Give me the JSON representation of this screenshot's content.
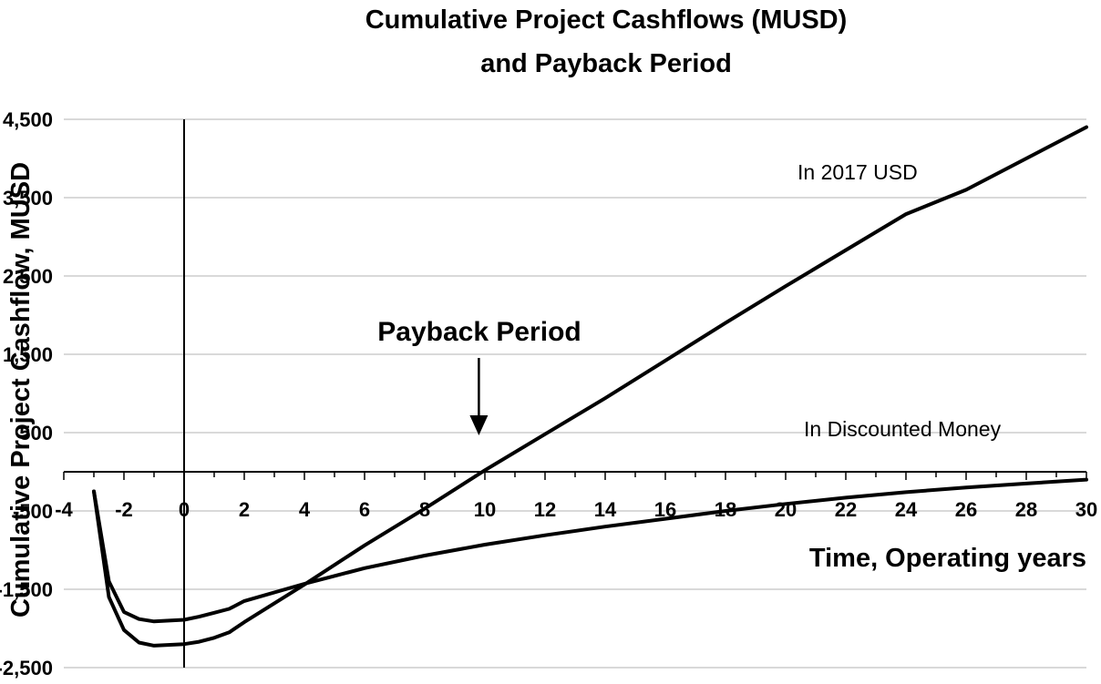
{
  "chart_data": {
    "type": "line",
    "title": "Cumulative Project Cashflows (MUSD)",
    "subtitle": "and Payback Period",
    "xlabel": "Time, Operating years",
    "ylabel": "Cumulative  Project Cashflow, MUSD",
    "xlim": [
      -4,
      30
    ],
    "ylim": [
      -2500,
      4500
    ],
    "x_ticks": [
      "-4",
      "-2",
      "0",
      "2",
      "4",
      "6",
      "8",
      "10",
      "12",
      "14",
      "16",
      "18",
      "20",
      "22",
      "24",
      "26",
      "28",
      "30"
    ],
    "y_ticks": [
      "4,500",
      "3,500",
      "2,500",
      "1,500",
      "500",
      "-500",
      "-1,500",
      "-2,500"
    ],
    "grid": "horizontal",
    "series": [
      {
        "name": "In 2017 USD",
        "x": [
          -3,
          -2.5,
          -2,
          -1.5,
          -1,
          0,
          0.5,
          1,
          1.5,
          2,
          4,
          6,
          8,
          10,
          12,
          14,
          16,
          18,
          20,
          22,
          24,
          26,
          28,
          30
        ],
        "y": [
          -250,
          -1600,
          -2020,
          -2180,
          -2220,
          -2200,
          -2170,
          -2120,
          -2050,
          -1920,
          -1440,
          -940,
          -470,
          20,
          480,
          940,
          1420,
          1900,
          2370,
          2830,
          3290,
          3600,
          4000,
          4400
        ]
      },
      {
        "name": "In Discounted Money",
        "x": [
          -3,
          -2.5,
          -2,
          -1.5,
          -1,
          0,
          0.5,
          1,
          1.5,
          2,
          4,
          6,
          8,
          10,
          12,
          14,
          16,
          18,
          20,
          22,
          24,
          26,
          28,
          30
        ],
        "y": [
          -250,
          -1400,
          -1790,
          -1880,
          -1910,
          -1890,
          -1850,
          -1800,
          -1750,
          -1650,
          -1430,
          -1230,
          -1070,
          -930,
          -810,
          -700,
          -600,
          -500,
          -410,
          -330,
          -260,
          -200,
          -150,
          -100
        ]
      }
    ],
    "annotations": {
      "series1_label": "In 2017 USD",
      "series2_label": "In Discounted Money",
      "payback_label": "Payback Period",
      "payback_x": 9.8
    }
  }
}
